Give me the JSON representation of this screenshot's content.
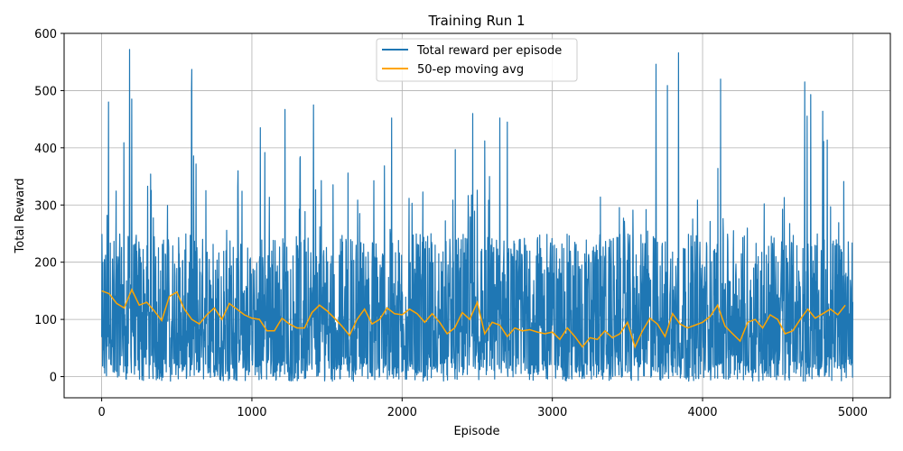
{
  "chart_data": {
    "type": "line",
    "title": "Training Run 1",
    "xlabel": "Episode",
    "ylabel": "Total Reward",
    "xlim": [
      -250,
      5250
    ],
    "ylim": [
      -37,
      600
    ],
    "xticks": [
      0,
      1000,
      2000,
      3000,
      4000,
      5000
    ],
    "xtick_labels": [
      "0",
      "1000",
      "2000",
      "3000",
      "4000",
      "5000"
    ],
    "yticks": [
      0,
      100,
      200,
      300,
      400,
      500,
      600
    ],
    "ytick_labels": [
      "0",
      "100",
      "200",
      "300",
      "400",
      "500",
      "600"
    ],
    "grid": true,
    "legend_position": "top-center",
    "episodes": 5000,
    "series": [
      {
        "name": "Total reward per episode",
        "color": "#1f77b4",
        "style": "noisy, range approx -8 to 572",
        "envelope_x": [
          0,
          100,
          200,
          300,
          400,
          500,
          600,
          700,
          800,
          900,
          1000,
          1100,
          1200,
          1300,
          1400,
          1500,
          1600,
          1700,
          1800,
          1900,
          2000,
          2100,
          2200,
          2300,
          2400,
          2500,
          2600,
          2700,
          2800,
          2900,
          3000,
          3100,
          3200,
          3300,
          3400,
          3500,
          3600,
          3700,
          3800,
          3900,
          4000,
          4100,
          4200,
          4300,
          4400,
          4500,
          4600,
          4700,
          4800,
          4900,
          5000
        ],
        "envelope_max": [
          340,
          480,
          572,
          415,
          400,
          455,
          537,
          380,
          340,
          385,
          335,
          435,
          300,
          467,
          475,
          340,
          412,
          340,
          395,
          452,
          350,
          340,
          420,
          365,
          460,
          445,
          410,
          452,
          290,
          358,
          290,
          270,
          328,
          362,
          300,
          360,
          340,
          546,
          566,
          340,
          380,
          520,
          260,
          325,
          398,
          395,
          338,
          515,
          464,
          394,
          374
        ],
        "peaks": [
          {
            "x": 45,
            "y": 480
          },
          {
            "x": 185,
            "y": 572
          },
          {
            "x": 200,
            "y": 485
          },
          {
            "x": 600,
            "y": 537
          },
          {
            "x": 1055,
            "y": 435
          },
          {
            "x": 1220,
            "y": 467
          },
          {
            "x": 1410,
            "y": 475
          },
          {
            "x": 1930,
            "y": 452
          },
          {
            "x": 2470,
            "y": 460
          },
          {
            "x": 2550,
            "y": 412
          },
          {
            "x": 2650,
            "y": 452
          },
          {
            "x": 2700,
            "y": 445
          },
          {
            "x": 3690,
            "y": 546
          },
          {
            "x": 3840,
            "y": 566
          },
          {
            "x": 4120,
            "y": 520
          },
          {
            "x": 4680,
            "y": 515
          },
          {
            "x": 4720,
            "y": 493
          },
          {
            "x": 4800,
            "y": 464
          }
        ]
      },
      {
        "name": "50-ep moving avg",
        "color": "#ffa500",
        "x": [
          0,
          50,
          100,
          150,
          200,
          250,
          300,
          350,
          400,
          450,
          500,
          550,
          600,
          650,
          700,
          750,
          800,
          850,
          900,
          950,
          1000,
          1050,
          1100,
          1150,
          1200,
          1250,
          1300,
          1350,
          1400,
          1450,
          1500,
          1550,
          1600,
          1650,
          1700,
          1750,
          1800,
          1850,
          1900,
          1950,
          2000,
          2050,
          2100,
          2150,
          2200,
          2250,
          2300,
          2350,
          2400,
          2450,
          2500,
          2550,
          2600,
          2650,
          2700,
          2750,
          2800,
          2850,
          2900,
          2950,
          3000,
          3050,
          3100,
          3150,
          3200,
          3250,
          3300,
          3350,
          3400,
          3450,
          3500,
          3550,
          3600,
          3650,
          3700,
          3750,
          3800,
          3850,
          3900,
          3950,
          4000,
          4050,
          4100,
          4150,
          4200,
          4250,
          4300,
          4350,
          4400,
          4450,
          4500,
          4550,
          4600,
          4650,
          4700,
          4750,
          4800,
          4850,
          4900,
          4950
        ],
        "y": [
          150,
          145,
          128,
          120,
          152,
          125,
          130,
          115,
          98,
          140,
          148,
          118,
          100,
          92,
          108,
          120,
          100,
          128,
          118,
          108,
          102,
          100,
          80,
          80,
          102,
          92,
          85,
          85,
          112,
          125,
          115,
          102,
          88,
          72,
          100,
          118,
          92,
          100,
          120,
          110,
          108,
          118,
          110,
          95,
          110,
          95,
          75,
          85,
          112,
          100,
          130,
          75,
          95,
          90,
          70,
          85,
          80,
          82,
          78,
          75,
          78,
          65,
          85,
          70,
          52,
          68,
          65,
          80,
          68,
          75,
          95,
          52,
          80,
          102,
          92,
          70,
          110,
          92,
          85,
          90,
          95,
          105,
          125,
          88,
          75,
          62,
          95,
          100,
          85,
          108,
          100,
          75,
          80,
          100,
          118,
          102,
          110,
          118,
          108,
          125
        ]
      }
    ]
  }
}
